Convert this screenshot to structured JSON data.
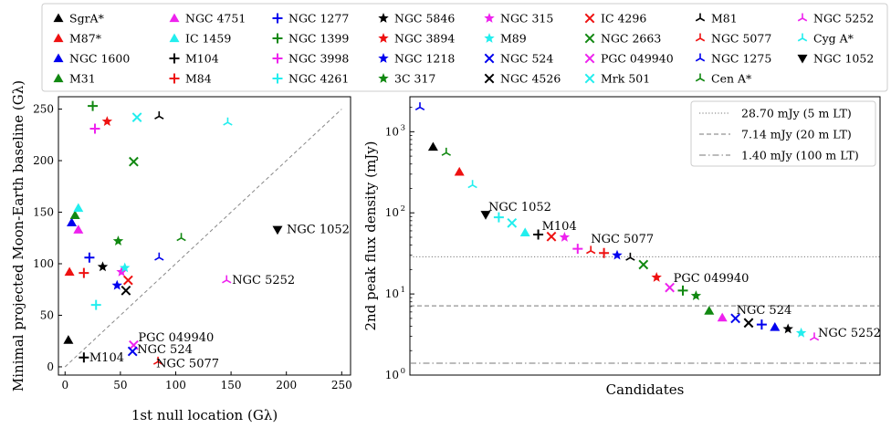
{
  "chart_data": [
    {
      "type": "scatter",
      "xlabel": "1st null location (Gλ)",
      "ylabel": "Minimal projected Moon-Earth baseline (Gλ)",
      "xlim": [
        -6,
        258
      ],
      "ylim": [
        -8,
        262
      ],
      "xticks": [
        "0",
        "50",
        "100",
        "150",
        "200",
        "250"
      ],
      "yticks": [
        "0",
        "50",
        "100",
        "150",
        "200",
        "250"
      ],
      "reference_line": {
        "x": [
          0,
          250
        ],
        "y": [
          0,
          250
        ],
        "style": "dashed"
      },
      "legend": {
        "placement": "top",
        "entries": [
          {
            "label": "SgrA*",
            "marker": "tri-up",
            "color": "#000000"
          },
          {
            "label": "M87*",
            "marker": "tri-up",
            "color": "#ee1111"
          },
          {
            "label": "NGC 1600",
            "marker": "tri-up",
            "color": "#0000ee"
          },
          {
            "label": "M31",
            "marker": "tri-up",
            "color": "#118811"
          },
          {
            "label": "NGC 4751",
            "marker": "tri-up",
            "color": "#ee22ee"
          },
          {
            "label": "IC 1459",
            "marker": "tri-up",
            "color": "#22eeee"
          },
          {
            "label": "M104",
            "marker": "plus",
            "color": "#000000"
          },
          {
            "label": "M84",
            "marker": "plus",
            "color": "#ee1111"
          },
          {
            "label": "NGC 1277",
            "marker": "plus",
            "color": "#0000ee"
          },
          {
            "label": "NGC 1399",
            "marker": "plus",
            "color": "#118811"
          },
          {
            "label": "NGC 3998",
            "marker": "plus",
            "color": "#ee22ee"
          },
          {
            "label": "NGC 4261",
            "marker": "plus",
            "color": "#22eeee"
          },
          {
            "label": "NGC 5846",
            "marker": "star",
            "color": "#000000"
          },
          {
            "label": "NGC 3894",
            "marker": "star",
            "color": "#ee1111"
          },
          {
            "label": "NGC 1218",
            "marker": "star",
            "color": "#0000ee"
          },
          {
            "label": "3C 317",
            "marker": "star",
            "color": "#118811"
          },
          {
            "label": "NGC 315",
            "marker": "star",
            "color": "#ee22ee"
          },
          {
            "label": "M89",
            "marker": "star",
            "color": "#22eeee"
          },
          {
            "label": "NGC 524",
            "marker": "x",
            "color": "#0000ee"
          },
          {
            "label": "NGC 4526",
            "marker": "x",
            "color": "#000000"
          },
          {
            "label": "IC 4296",
            "marker": "x",
            "color": "#ee1111"
          },
          {
            "label": "NGC 2663",
            "marker": "x",
            "color": "#118811"
          },
          {
            "label": "PGC 049940",
            "marker": "x",
            "color": "#ee22ee"
          },
          {
            "label": "Mrk 501",
            "marker": "x",
            "color": "#22eeee"
          },
          {
            "label": "M81",
            "marker": "tri3",
            "color": "#000000"
          },
          {
            "label": "NGC 5077",
            "marker": "tri3",
            "color": "#ee1111"
          },
          {
            "label": "NGC 1275",
            "marker": "tri3",
            "color": "#0000ee"
          },
          {
            "label": "Cen A*",
            "marker": "tri3",
            "color": "#118811"
          },
          {
            "label": "NGC 5252",
            "marker": "tri3",
            "color": "#ee22ee"
          },
          {
            "label": "Cyg A*",
            "marker": "tri3",
            "color": "#22eeee"
          },
          {
            "label": "NGC 1052",
            "marker": "tri-down",
            "color": "#000000"
          }
        ]
      },
      "points": [
        {
          "x": 3,
          "y": 26,
          "marker": "tri-up",
          "color": "#000000"
        },
        {
          "x": 4,
          "y": 92,
          "marker": "tri-up",
          "color": "#ee1111"
        },
        {
          "x": 6,
          "y": 140,
          "marker": "tri-up",
          "color": "#0000ee"
        },
        {
          "x": 9,
          "y": 147,
          "marker": "tri-up",
          "color": "#118811"
        },
        {
          "x": 12,
          "y": 133,
          "marker": "tri-up",
          "color": "#ee22ee"
        },
        {
          "x": 12,
          "y": 154,
          "marker": "tri-up",
          "color": "#22eeee"
        },
        {
          "x": 17,
          "y": 9,
          "marker": "plus",
          "color": "#000000"
        },
        {
          "x": 17,
          "y": 91,
          "marker": "plus",
          "color": "#ee1111"
        },
        {
          "x": 22,
          "y": 106,
          "marker": "plus",
          "color": "#0000ee"
        },
        {
          "x": 25,
          "y": 253,
          "marker": "plus",
          "color": "#118811"
        },
        {
          "x": 27,
          "y": 231,
          "marker": "plus",
          "color": "#ee22ee"
        },
        {
          "x": 28,
          "y": 60,
          "marker": "plus",
          "color": "#22eeee"
        },
        {
          "x": 34,
          "y": 97,
          "marker": "star",
          "color": "#000000"
        },
        {
          "x": 38,
          "y": 238,
          "marker": "star",
          "color": "#ee1111"
        },
        {
          "x": 47,
          "y": 79,
          "marker": "star",
          "color": "#0000ee"
        },
        {
          "x": 48,
          "y": 122,
          "marker": "star",
          "color": "#118811"
        },
        {
          "x": 51,
          "y": 92,
          "marker": "star",
          "color": "#ee22ee"
        },
        {
          "x": 54,
          "y": 96,
          "marker": "star",
          "color": "#22eeee"
        },
        {
          "x": 55,
          "y": 74,
          "marker": "x",
          "color": "#000000"
        },
        {
          "x": 57,
          "y": 84,
          "marker": "x",
          "color": "#ee1111"
        },
        {
          "x": 62,
          "y": 199,
          "marker": "x",
          "color": "#118811"
        },
        {
          "x": 65,
          "y": 242,
          "marker": "x",
          "color": "#22eeee"
        },
        {
          "x": 62,
          "y": 21,
          "marker": "x",
          "color": "#ee22ee"
        },
        {
          "x": 61,
          "y": 15,
          "marker": "x",
          "color": "#0000ee"
        },
        {
          "x": 85,
          "y": 243,
          "marker": "tri3",
          "color": "#000000"
        },
        {
          "x": 84,
          "y": 5,
          "marker": "tri3",
          "color": "#ee1111"
        },
        {
          "x": 85,
          "y": 106,
          "marker": "tri3",
          "color": "#0000ee"
        },
        {
          "x": 105,
          "y": 125,
          "marker": "tri3",
          "color": "#118811"
        },
        {
          "x": 146,
          "y": 84,
          "marker": "tri3",
          "color": "#ee22ee"
        },
        {
          "x": 147,
          "y": 237,
          "marker": "tri3",
          "color": "#22eeee"
        },
        {
          "x": 192,
          "y": 133,
          "marker": "tri-down",
          "color": "#000000"
        }
      ],
      "annotations": [
        {
          "text": "NGC 1052",
          "x": 192,
          "y": 133
        },
        {
          "text": "NGC 5252",
          "x": 146,
          "y": 84
        },
        {
          "text": "PGC 049940",
          "x": 62,
          "y": 21
        },
        {
          "text": "NGC 524",
          "x": 61,
          "y": 15
        },
        {
          "text": "NGC 5077",
          "x": 84,
          "y": 5
        },
        {
          "text": "M104",
          "x": 17,
          "y": 9
        }
      ]
    },
    {
      "type": "scatter",
      "yscale": "log",
      "xlabel": "Candidates",
      "ylabel": "2nd peak flux density (mJy)",
      "ylim": [
        1,
        2700
      ],
      "yticks": [
        {
          "base": "10",
          "exp": "0",
          "value": 1
        },
        {
          "base": "10",
          "exp": "1",
          "value": 10
        },
        {
          "base": "10",
          "exp": "2",
          "value": 100
        },
        {
          "base": "10",
          "exp": "3",
          "value": 1000
        }
      ],
      "hlines": [
        {
          "value": 28.7,
          "label": "28.70 mJy (5 m LT)",
          "style": "dotted"
        },
        {
          "value": 7.14,
          "label": "7.14 mJy (20 m LT)",
          "style": "dashed"
        },
        {
          "value": 1.4,
          "label": "1.40 mJy (100 m LT)",
          "style": "dashdot"
        }
      ],
      "legend": {
        "placement": "top-right"
      },
      "points": [
        {
          "rank": 0,
          "value": 2000,
          "marker": "tri3",
          "color": "#0000ee"
        },
        {
          "rank": 1,
          "value": 650,
          "marker": "tri-up",
          "color": "#000000"
        },
        {
          "rank": 2,
          "value": 550,
          "marker": "tri3",
          "color": "#118811"
        },
        {
          "rank": 3,
          "value": 320,
          "marker": "tri-up",
          "color": "#ee1111"
        },
        {
          "rank": 4,
          "value": 220,
          "marker": "tri3",
          "color": "#22eeee"
        },
        {
          "rank": 5,
          "value": 95,
          "marker": "tri-down",
          "color": "#000000"
        },
        {
          "rank": 6,
          "value": 88,
          "marker": "plus",
          "color": "#22eeee"
        },
        {
          "rank": 7,
          "value": 75,
          "marker": "x",
          "color": "#22eeee"
        },
        {
          "rank": 8,
          "value": 57,
          "marker": "tri-up",
          "color": "#22eeee"
        },
        {
          "rank": 9,
          "value": 54,
          "marker": "plus",
          "color": "#000000"
        },
        {
          "rank": 10,
          "value": 51,
          "marker": "x",
          "color": "#ee1111"
        },
        {
          "rank": 11,
          "value": 50,
          "marker": "star",
          "color": "#ee22ee"
        },
        {
          "rank": 12,
          "value": 36,
          "marker": "plus",
          "color": "#ee22ee"
        },
        {
          "rank": 13,
          "value": 34,
          "marker": "tri3",
          "color": "#ee1111"
        },
        {
          "rank": 14,
          "value": 32,
          "marker": "plus",
          "color": "#ee1111"
        },
        {
          "rank": 15,
          "value": 30,
          "marker": "star",
          "color": "#0000ee"
        },
        {
          "rank": 16,
          "value": 28,
          "marker": "tri3",
          "color": "#000000"
        },
        {
          "rank": 17,
          "value": 23,
          "marker": "x",
          "color": "#118811"
        },
        {
          "rank": 18,
          "value": 16,
          "marker": "star",
          "color": "#ee1111"
        },
        {
          "rank": 19,
          "value": 12,
          "marker": "x",
          "color": "#ee22ee"
        },
        {
          "rank": 20,
          "value": 11,
          "marker": "plus",
          "color": "#118811"
        },
        {
          "rank": 21,
          "value": 9.5,
          "marker": "star",
          "color": "#118811"
        },
        {
          "rank": 22,
          "value": 6.2,
          "marker": "tri-up",
          "color": "#118811"
        },
        {
          "rank": 23,
          "value": 5.1,
          "marker": "tri-up",
          "color": "#ee22ee"
        },
        {
          "rank": 24,
          "value": 5.0,
          "marker": "x",
          "color": "#0000ee"
        },
        {
          "rank": 25,
          "value": 4.4,
          "marker": "x",
          "color": "#000000"
        },
        {
          "rank": 26,
          "value": 4.2,
          "marker": "plus",
          "color": "#0000ee"
        },
        {
          "rank": 27,
          "value": 3.9,
          "marker": "tri-up",
          "color": "#0000ee"
        },
        {
          "rank": 28,
          "value": 3.7,
          "marker": "star",
          "color": "#000000"
        },
        {
          "rank": 29,
          "value": 3.3,
          "marker": "star",
          "color": "#22eeee"
        },
        {
          "rank": 30,
          "value": 2.9,
          "marker": "tri3",
          "color": "#ee22ee"
        }
      ],
      "annotations": [
        {
          "text": "NGC 1052",
          "rank": 5,
          "value": 95
        },
        {
          "text": "M104",
          "rank": 9,
          "value": 54
        },
        {
          "text": "NGC 5077",
          "rank": 13,
          "value": 34
        },
        {
          "text": "PGC 049940",
          "rank": 19,
          "value": 12
        },
        {
          "text": "NGC 524",
          "rank": 24,
          "value": 5.0
        },
        {
          "text": "NGC 5252",
          "rank": 30,
          "value": 2.9
        }
      ]
    }
  ]
}
